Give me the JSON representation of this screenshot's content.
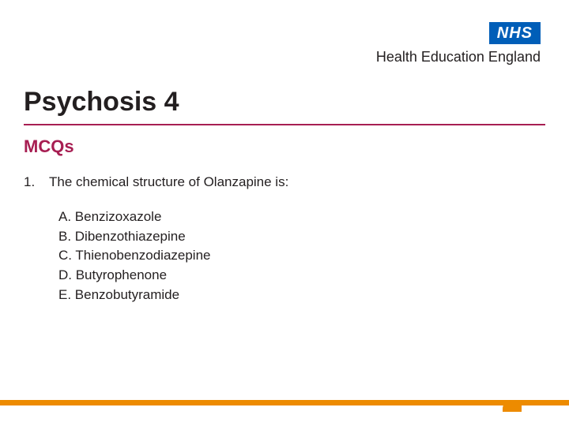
{
  "logo": {
    "box_text": "NHS",
    "subtext": "Health Education England",
    "box_bg": "#005eb8",
    "box_fg": "#ffffff",
    "sub_color": "#231f20"
  },
  "title": {
    "text": "Psychosis 4",
    "color": "#231f20",
    "underline_color": "#a71e52",
    "fontsize": 34
  },
  "subtitle": {
    "text": "MCQs",
    "color": "#a71e52",
    "fontsize": 22
  },
  "question": {
    "number": "1.",
    "stem": "The chemical structure of Olanzapine is:",
    "options": [
      "A. Benzizoxazole",
      "B. Dibenzothiazepine",
      "C. Thienobenzodiazepine",
      "D. Butyrophenone",
      "E. Benzobutyramide"
    ]
  },
  "footer": {
    "bar_color": "#ed8b00"
  },
  "background_color": "#ffffff"
}
